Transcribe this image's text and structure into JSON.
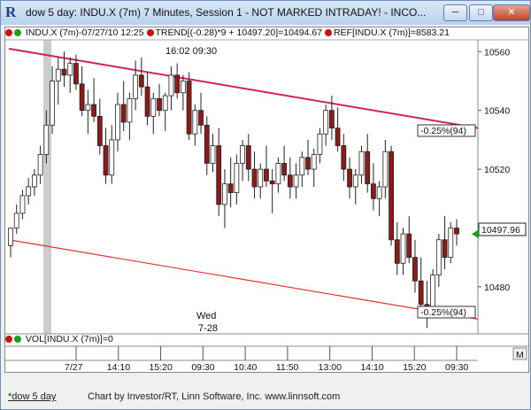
{
  "window": {
    "title": "dow 5 day: INDU.X (7m) 7 Minutes, Session 1 - NOT MARKED INTRADAY! - INCO...",
    "minimize": "─",
    "maximize": "□",
    "close": "✕"
  },
  "legend": {
    "symbol": "INDU.X (7m)-07/27/10 12:25",
    "trend": "TREND[(-0.28)*9 + 10497.20]=10494.67",
    "ref": "REF[INDU.X (7m)]=8583.21",
    "colors": {
      "green": "#1aa01a",
      "red": "#cc1111"
    }
  },
  "cursor_time": "16:02  09:30",
  "annotations": {
    "wed": "Wed",
    "date": "7-28",
    "upper_pct": "-0.25%(94)",
    "lower_pct": "-0.25%(94)",
    "last_price": "10497.96"
  },
  "volume_label": "VOL[INDU.X (7m)]=0",
  "maximize_vol": "M",
  "footer": {
    "tab": "*dow 5 day",
    "credit": "Chart by Investor/RT, Linn Software, Inc. www.linnsoft.com"
  },
  "chart_data": {
    "type": "candlestick",
    "ylim": [
      10464,
      10564
    ],
    "y_ticks": [
      10480,
      10500,
      10520,
      10540,
      10560
    ],
    "x_ticks": [
      "7/27",
      "14:10",
      "15:20",
      "09:30",
      "10:40",
      "11:50",
      "13:00",
      "14:10",
      "15:20",
      "09:30"
    ],
    "trend_upper": {
      "start": 10561,
      "end": 10534
    },
    "trend_lower": {
      "start": 10496,
      "end": 10469
    },
    "last": 10497.96,
    "colors": {
      "up": "#ffffff",
      "down": "#8b1a1a",
      "trend_upper": "#d0235a",
      "trend_lower": "#e0303a",
      "last_marker": "#18a018"
    },
    "candles": [
      [
        10494,
        10500,
        10490,
        10500
      ],
      [
        10500,
        10508,
        10498,
        10505
      ],
      [
        10505,
        10513,
        10503,
        10511
      ],
      [
        10511,
        10517,
        10508,
        10514
      ],
      [
        10514,
        10520,
        10511,
        10518
      ],
      [
        10518,
        10528,
        10515,
        10525
      ],
      [
        10525,
        10540,
        10522,
        10535
      ],
      [
        10535,
        10555,
        10532,
        10550
      ],
      [
        10550,
        10558,
        10542,
        10554
      ],
      [
        10554,
        10560,
        10548,
        10552
      ],
      [
        10552,
        10558,
        10546,
        10556
      ],
      [
        10556,
        10559,
        10547,
        10549
      ],
      [
        10549,
        10555,
        10538,
        10540
      ],
      [
        10540,
        10547,
        10532,
        10542
      ],
      [
        10542,
        10551,
        10536,
        10538
      ],
      [
        10538,
        10544,
        10525,
        10528
      ],
      [
        10528,
        10534,
        10515,
        10518
      ],
      [
        10518,
        10535,
        10515,
        10530
      ],
      [
        10530,
        10546,
        10526,
        10542
      ],
      [
        10542,
        10550,
        10533,
        10536
      ],
      [
        10536,
        10546,
        10530,
        10544
      ],
      [
        10544,
        10557,
        10540,
        10552
      ],
      [
        10552,
        10558,
        10545,
        10548
      ],
      [
        10548,
        10553,
        10535,
        10538
      ],
      [
        10538,
        10546,
        10532,
        10544
      ],
      [
        10544,
        10549,
        10538,
        10540
      ],
      [
        10540,
        10546,
        10533,
        10545
      ],
      [
        10545,
        10555,
        10540,
        10552
      ],
      [
        10552,
        10556,
        10544,
        10546
      ],
      [
        10546,
        10552,
        10540,
        10550
      ],
      [
        10550,
        10553,
        10530,
        10532
      ],
      [
        10532,
        10542,
        10528,
        10540
      ],
      [
        10540,
        10546,
        10532,
        10535
      ],
      [
        10535,
        10538,
        10518,
        10522
      ],
      [
        10522,
        10532,
        10519,
        10528
      ],
      [
        10528,
        10534,
        10504,
        10508
      ],
      [
        10508,
        10520,
        10500,
        10515
      ],
      [
        10515,
        10524,
        10507,
        10512
      ],
      [
        10512,
        10525,
        10508,
        10522
      ],
      [
        10522,
        10530,
        10516,
        10528
      ],
      [
        10528,
        10532,
        10516,
        10520
      ],
      [
        10520,
        10526,
        10510,
        10514
      ],
      [
        10514,
        10522,
        10510,
        10520
      ],
      [
        10520,
        10528,
        10514,
        10516
      ],
      [
        10516,
        10520,
        10505,
        10515
      ],
      [
        10515,
        10524,
        10512,
        10522
      ],
      [
        10522,
        10528,
        10516,
        10518
      ],
      [
        10518,
        10524,
        10510,
        10514
      ],
      [
        10514,
        10522,
        10510,
        10518
      ],
      [
        10518,
        10526,
        10514,
        10524
      ],
      [
        10524,
        10530,
        10518,
        10520
      ],
      [
        10520,
        10527,
        10514,
        10525
      ],
      [
        10525,
        10534,
        10522,
        10532
      ],
      [
        10532,
        10542,
        10528,
        10540
      ],
      [
        10540,
        10545,
        10530,
        10534
      ],
      [
        10534,
        10541,
        10526,
        10528
      ],
      [
        10528,
        10532,
        10516,
        10520
      ],
      [
        10520,
        10524,
        10510,
        10514
      ],
      [
        10514,
        10520,
        10508,
        10518
      ],
      [
        10518,
        10528,
        10515,
        10526
      ],
      [
        10526,
        10532,
        10512,
        10515
      ],
      [
        10515,
        10522,
        10506,
        10510
      ],
      [
        10510,
        10516,
        10504,
        10514
      ],
      [
        10514,
        10530,
        10510,
        10526
      ],
      [
        10526,
        10528,
        10494,
        10496
      ],
      [
        10496,
        10502,
        10484,
        10488
      ],
      [
        10488,
        10500,
        10484,
        10498
      ],
      [
        10498,
        10504,
        10488,
        10490
      ],
      [
        10490,
        10496,
        10478,
        10482
      ],
      [
        10482,
        10490,
        10470,
        10474
      ],
      [
        10474,
        10482,
        10466,
        10472
      ],
      [
        10472,
        10486,
        10470,
        10484
      ],
      [
        10484,
        10498,
        10480,
        10496
      ],
      [
        10496,
        10504,
        10486,
        10490
      ],
      [
        10490,
        10502,
        10488,
        10500
      ],
      [
        10500,
        10503,
        10494,
        10498
      ]
    ]
  }
}
